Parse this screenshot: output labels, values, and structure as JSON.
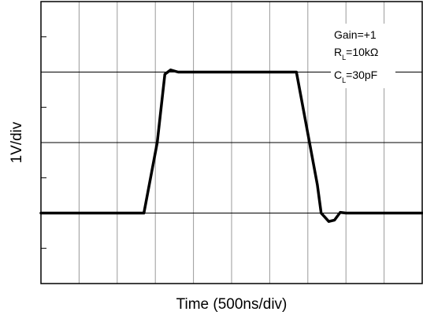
{
  "chart_data": {
    "type": "line",
    "title": "",
    "xlabel": "Time (500ns/div)",
    "ylabel": "1V/div",
    "grid": true,
    "x_divisions": 10,
    "y_divisions": 4,
    "xlim": [
      0,
      10
    ],
    "ylim": [
      -1,
      3
    ],
    "series": [
      {
        "x": [
          0,
          2.7,
          3.05,
          3.25,
          3.4,
          3.6,
          6.7,
          7.25,
          7.35,
          7.55,
          7.7,
          7.85,
          8.0,
          10
        ],
        "y": [
          0,
          0,
          1.0,
          1.97,
          2.03,
          2.0,
          2.0,
          0.4,
          0.0,
          -0.12,
          -0.1,
          0.01,
          0.0,
          0.0
        ]
      }
    ],
    "annotations": [
      {
        "text": "Gain=+1"
      },
      {
        "text": "R",
        "sub": "L",
        "rest": "=10kΩ"
      },
      {
        "text": "C",
        "sub": "L",
        "rest": "=30pF"
      }
    ]
  }
}
